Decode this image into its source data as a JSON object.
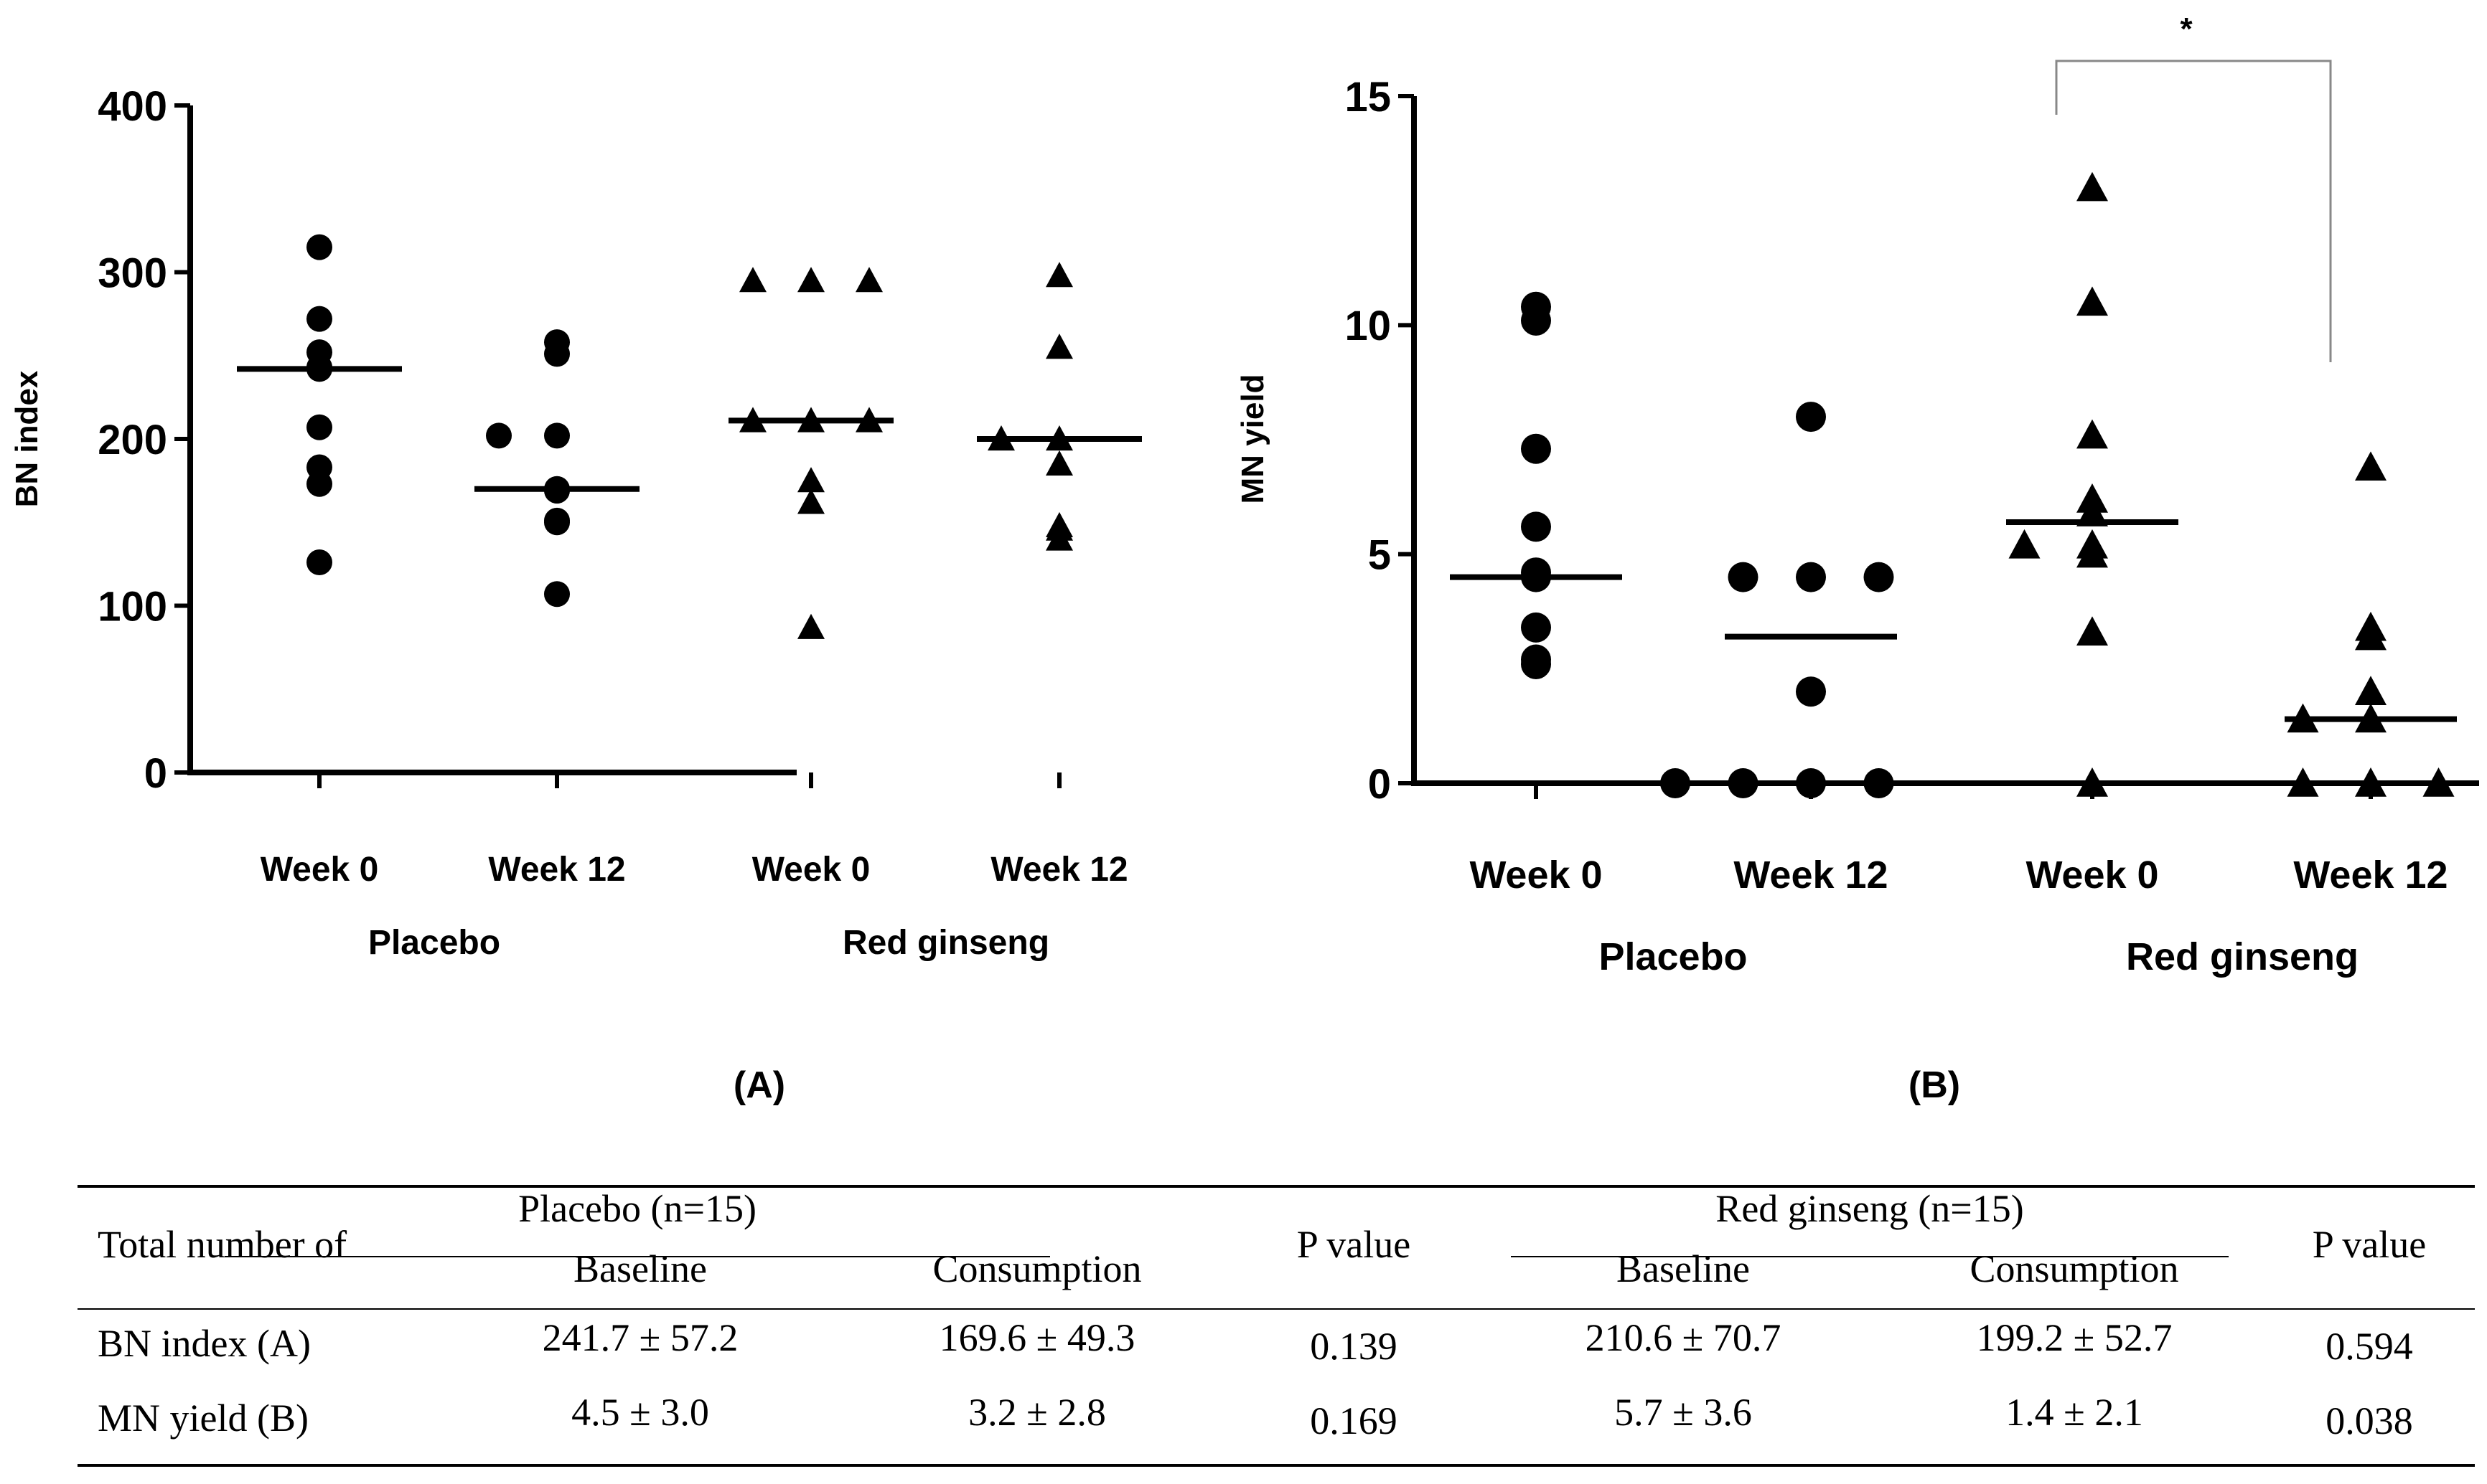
{
  "charts": [
    {
      "id": "A",
      "label": "(A)",
      "type": "scatter",
      "ylabel": "BN index",
      "ylim": [
        0,
        400
      ],
      "yticks": [
        "0",
        "100",
        "200",
        "300",
        "400"
      ],
      "categories": [
        "Week 0",
        "Week 12",
        "Week 0",
        "Week 12"
      ],
      "groups": [
        "Placebo",
        "Red ginseng"
      ],
      "series": [
        {
          "name": "Placebo Week 0",
          "marker": "circle",
          "median": 242,
          "values": [
            315,
            272,
            252,
            242,
            243,
            207,
            183,
            173,
            126
          ]
        },
        {
          "name": "Placebo Week 12",
          "marker": "circle",
          "median": 170,
          "values": [
            258,
            251,
            202,
            202,
            170,
            151,
            169,
            150,
            107
          ]
        },
        {
          "name": "Red ginseng Week 0",
          "marker": "triangle",
          "median": 211,
          "values": [
            295,
            295,
            295,
            211,
            211,
            211,
            175,
            162,
            87
          ]
        },
        {
          "name": "Red ginseng Week 12",
          "marker": "triangle",
          "median": 200,
          "values": [
            298,
            255,
            200,
            200,
            185,
            146,
            140,
            148
          ]
        }
      ]
    },
    {
      "id": "B",
      "label": "(B)",
      "type": "scatter",
      "ylabel": "MN yield",
      "ylim": [
        0,
        15
      ],
      "yticks": [
        "0",
        "5",
        "10",
        "15"
      ],
      "categories": [
        "Week 0",
        "Week 12",
        "Week 0",
        "Week 12"
      ],
      "groups": [
        "Placebo",
        "Red ginseng"
      ],
      "significance": "*",
      "series": [
        {
          "name": "Placebo Week 0",
          "marker": "circle",
          "median": 4.5,
          "values": [
            10.4,
            10.1,
            7.3,
            5.6,
            4.6,
            4.5,
            3.4,
            2.7,
            2.6
          ]
        },
        {
          "name": "Placebo Week 12",
          "marker": "circle",
          "median": 3.2,
          "values": [
            8.0,
            4.5,
            4.5,
            4.5,
            2.0,
            0,
            0,
            0,
            0
          ]
        },
        {
          "name": "Red ginseng Week 0",
          "marker": "triangle",
          "median": 5.7,
          "values": [
            13.0,
            10.5,
            7.6,
            6.2,
            5.9,
            5.2,
            5.2,
            5.0,
            3.3,
            0
          ]
        },
        {
          "name": "Red ginseng Week 12",
          "marker": "triangle",
          "median": 1.4,
          "values": [
            6.9,
            3.4,
            3.2,
            2.0,
            1.4,
            1.4,
            0,
            0,
            0
          ]
        }
      ]
    }
  ],
  "table": {
    "row_header": "Total number of",
    "placebo_group": "Placebo (n=15)",
    "ginseng_group": "Red ginseng (n=15)",
    "baseline": "Baseline",
    "consumption": "Consumption",
    "p_value": "P value",
    "rows": [
      {
        "label": "BN index (A)",
        "placebo_baseline": "241.7 ±  57.2",
        "placebo_consumption": "169.6 ± 49.3",
        "placebo_p": "0.139",
        "ginseng_baseline": "210.6 ±  70.7",
        "ginseng_consumption": "199.2 ±  52.7",
        "ginseng_p": "0.594"
      },
      {
        "label": "MN yield (B)",
        "placebo_baseline": "4.5 ± 3.0",
        "placebo_consumption": "3.2 ±  2.8",
        "placebo_p": "0.169",
        "ginseng_baseline": "5.7 ± 3.6",
        "ginseng_consumption": "1.4 ± 2.1",
        "ginseng_p": "0.038"
      }
    ]
  }
}
